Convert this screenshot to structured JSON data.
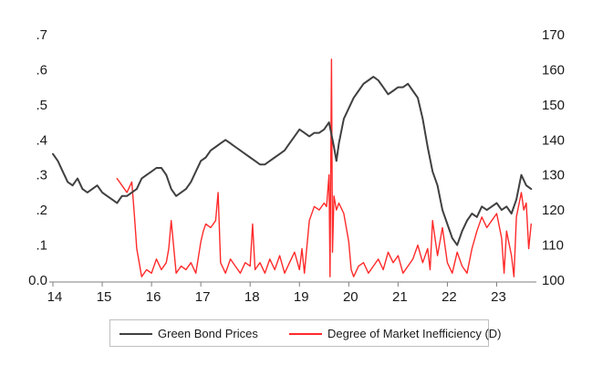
{
  "chart_data": {
    "type": "line",
    "title": "",
    "xlabel": "",
    "ylabel": "",
    "x_tick_labels": [
      "14",
      "15",
      "16",
      "17",
      "18",
      "19",
      "20",
      "21",
      "22",
      "23"
    ],
    "y_left": {
      "ylim": [
        0.0,
        0.7
      ],
      "tick_labels": [
        ".7",
        ".6",
        ".5",
        ".4",
        ".3",
        ".2",
        ".1",
        "0.0"
      ],
      "tick_values": [
        0.7,
        0.6,
        0.5,
        0.4,
        0.3,
        0.2,
        0.1,
        0.0
      ]
    },
    "y_right": {
      "ylim": [
        100,
        170
      ],
      "tick_labels": [
        "170",
        "160",
        "150",
        "140",
        "130",
        "120",
        "110",
        "100"
      ],
      "tick_values": [
        170,
        160,
        150,
        140,
        130,
        120,
        110,
        100
      ]
    },
    "xlim": [
      2014.0,
      2023.75
    ],
    "grid": false,
    "legend_position": "bottom",
    "series": [
      {
        "name": "Green Bond Prices",
        "axis": "right",
        "color": "#404040",
        "x": [
          2014.0,
          2014.1,
          2014.2,
          2014.3,
          2014.4,
          2014.5,
          2014.6,
          2014.7,
          2014.8,
          2014.9,
          2015.0,
          2015.1,
          2015.2,
          2015.3,
          2015.4,
          2015.5,
          2015.6,
          2015.7,
          2015.8,
          2015.9,
          2016.0,
          2016.1,
          2016.2,
          2016.3,
          2016.4,
          2016.5,
          2016.6,
          2016.7,
          2016.8,
          2016.9,
          2017.0,
          2017.1,
          2017.2,
          2017.3,
          2017.4,
          2017.5,
          2017.6,
          2017.7,
          2017.8,
          2017.9,
          2018.0,
          2018.1,
          2018.2,
          2018.3,
          2018.4,
          2018.5,
          2018.6,
          2018.7,
          2018.8,
          2018.9,
          2019.0,
          2019.1,
          2019.2,
          2019.3,
          2019.4,
          2019.5,
          2019.6,
          2019.7,
          2019.75,
          2019.8,
          2019.9,
          2020.0,
          2020.1,
          2020.2,
          2020.3,
          2020.4,
          2020.5,
          2020.6,
          2020.7,
          2020.8,
          2020.9,
          2021.0,
          2021.1,
          2021.2,
          2021.3,
          2021.4,
          2021.5,
          2021.6,
          2021.7,
          2021.8,
          2021.9,
          2022.0,
          2022.1,
          2022.2,
          2022.3,
          2022.4,
          2022.5,
          2022.6,
          2022.7,
          2022.8,
          2022.9,
          2023.0,
          2023.1,
          2023.2,
          2023.3,
          2023.4,
          2023.5,
          2023.6,
          2023.7
        ],
        "values": [
          136,
          134,
          131,
          128,
          127,
          129,
          126,
          125,
          126,
          127,
          125,
          124,
          123,
          122,
          124,
          124,
          125,
          126,
          129,
          130,
          131,
          132,
          132,
          130,
          126,
          124,
          125,
          126,
          128,
          131,
          134,
          135,
          137,
          138,
          139,
          140,
          139,
          138,
          137,
          136,
          135,
          134,
          133,
          133,
          134,
          135,
          136,
          137,
          139,
          141,
          143,
          142,
          141,
          142,
          142,
          143,
          145,
          138,
          134,
          139,
          146,
          149,
          152,
          154,
          156,
          157,
          158,
          157,
          155,
          153,
          154,
          155,
          155,
          156,
          154,
          152,
          146,
          138,
          131,
          127,
          120,
          116,
          112,
          110,
          114,
          117,
          119,
          118,
          121,
          120,
          121,
          122,
          120,
          121,
          119,
          123,
          130,
          127,
          126
        ]
      },
      {
        "name": "Degree of Market Inefficiency (D)",
        "axis": "left",
        "color": "#ff2a2a",
        "x": [
          2015.3,
          2015.4,
          2015.5,
          2015.6,
          2015.65,
          2015.7,
          2015.8,
          2015.9,
          2016.0,
          2016.1,
          2016.2,
          2016.3,
          2016.35,
          2016.4,
          2016.5,
          2016.6,
          2016.7,
          2016.8,
          2016.9,
          2017.0,
          2017.05,
          2017.1,
          2017.2,
          2017.3,
          2017.35,
          2017.4,
          2017.5,
          2017.6,
          2017.7,
          2017.8,
          2017.9,
          2018.0,
          2018.05,
          2018.1,
          2018.2,
          2018.3,
          2018.4,
          2018.5,
          2018.6,
          2018.7,
          2018.8,
          2018.9,
          2019.0,
          2019.05,
          2019.1,
          2019.2,
          2019.3,
          2019.4,
          2019.5,
          2019.55,
          2019.6,
          2019.62,
          2019.65,
          2019.67,
          2019.7,
          2019.75,
          2019.8,
          2019.9,
          2020.0,
          2020.05,
          2020.1,
          2020.2,
          2020.3,
          2020.4,
          2020.5,
          2020.6,
          2020.7,
          2020.8,
          2020.9,
          2021.0,
          2021.1,
          2021.2,
          2021.3,
          2021.4,
          2021.5,
          2021.6,
          2021.65,
          2021.7,
          2021.8,
          2021.9,
          2022.0,
          2022.1,
          2022.2,
          2022.3,
          2022.4,
          2022.5,
          2022.6,
          2022.7,
          2022.8,
          2022.9,
          2023.0,
          2023.1,
          2023.15,
          2023.2,
          2023.3,
          2023.35,
          2023.4,
          2023.5,
          2023.55,
          2023.6,
          2023.65,
          2023.7
        ],
        "values": [
          0.29,
          0.27,
          0.25,
          0.28,
          0.19,
          0.09,
          0.01,
          0.03,
          0.02,
          0.06,
          0.03,
          0.05,
          0.09,
          0.17,
          0.02,
          0.04,
          0.03,
          0.05,
          0.02,
          0.11,
          0.14,
          0.16,
          0.15,
          0.17,
          0.25,
          0.05,
          0.02,
          0.06,
          0.04,
          0.02,
          0.05,
          0.04,
          0.16,
          0.03,
          0.05,
          0.02,
          0.06,
          0.03,
          0.07,
          0.02,
          0.05,
          0.08,
          0.03,
          0.09,
          0.02,
          0.17,
          0.21,
          0.2,
          0.22,
          0.21,
          0.3,
          0.01,
          0.63,
          0.08,
          0.24,
          0.2,
          0.22,
          0.19,
          0.11,
          0.03,
          0.01,
          0.04,
          0.05,
          0.02,
          0.04,
          0.06,
          0.03,
          0.08,
          0.05,
          0.07,
          0.02,
          0.04,
          0.06,
          0.1,
          0.05,
          0.09,
          0.03,
          0.17,
          0.07,
          0.15,
          0.05,
          0.02,
          0.08,
          0.04,
          0.02,
          0.09,
          0.14,
          0.18,
          0.15,
          0.17,
          0.19,
          0.12,
          0.02,
          0.14,
          0.07,
          0.01,
          0.18,
          0.25,
          0.2,
          0.22,
          0.09,
          0.16
        ]
      }
    ]
  }
}
